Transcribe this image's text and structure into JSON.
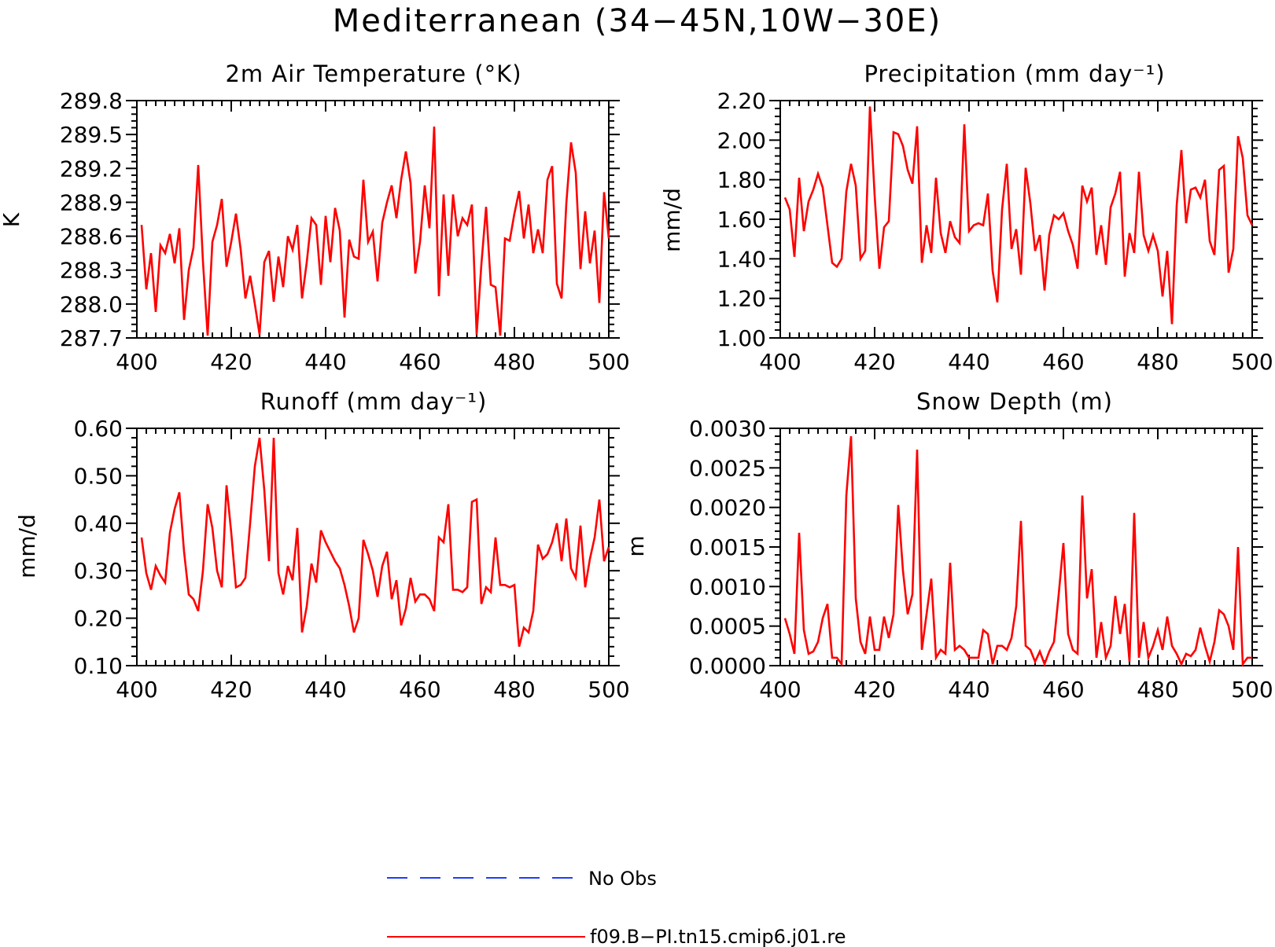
{
  "figure": {
    "title": "Mediterranean (34−45N,10W−30E)"
  },
  "legend": [
    {
      "label": "No Obs",
      "color": "#1f3cff",
      "dash": "dashed"
    },
    {
      "label": "f09.B−PI.tn15.cmip6.j01.re",
      "color": "#ff0000",
      "dash": "solid"
    }
  ],
  "chart_data": [
    {
      "type": "line",
      "title": "2m Air Temperature (°K)",
      "ylabel": "K",
      "xlim": [
        400,
        500
      ],
      "ylim": [
        287.7,
        289.8
      ],
      "x_ticks": [
        400,
        420,
        440,
        460,
        480,
        500
      ],
      "x_tick_labels": [
        "400",
        "420",
        "440",
        "460",
        "480",
        "500"
      ],
      "y_ticks": [
        287.7,
        288.0,
        288.3,
        288.6,
        288.9,
        289.2,
        289.5,
        289.8
      ],
      "y_tick_labels": [
        "287.7",
        "288.0",
        "288.3",
        "288.6",
        "288.9",
        "289.2",
        "289.5",
        "289.8"
      ],
      "x_start": 401,
      "series": [
        {
          "color": "#ff0000",
          "values": [
            288.7,
            288.13,
            288.45,
            287.93,
            288.52,
            288.45,
            288.62,
            288.36,
            288.67,
            287.86,
            288.3,
            288.5,
            289.23,
            288.38,
            287.72,
            288.55,
            288.7,
            288.93,
            288.33,
            288.55,
            288.8,
            288.48,
            288.05,
            288.25,
            288.0,
            287.73,
            288.37,
            288.47,
            288.02,
            288.42,
            288.15,
            288.6,
            288.48,
            288.7,
            288.05,
            288.37,
            288.76,
            288.7,
            288.17,
            288.78,
            288.37,
            288.85,
            288.65,
            287.88,
            288.57,
            288.42,
            288.4,
            289.1,
            288.55,
            288.64,
            288.2,
            288.72,
            288.9,
            289.05,
            288.76,
            289.1,
            289.35,
            289.07,
            288.27,
            288.55,
            289.05,
            288.67,
            289.57,
            288.07,
            288.97,
            288.25,
            288.97,
            288.6,
            288.76,
            288.7,
            288.88,
            287.73,
            288.35,
            288.86,
            288.17,
            288.15,
            287.72,
            288.58,
            288.56,
            288.8,
            289.0,
            288.58,
            288.88,
            288.45,
            288.66,
            288.45,
            289.1,
            289.22,
            288.18,
            288.05,
            288.89,
            289.43,
            289.16,
            288.31,
            288.82,
            288.36,
            288.65,
            288.01,
            288.99,
            288.58
          ]
        }
      ]
    },
    {
      "type": "line",
      "title": "Precipitation (mm day⁻¹)",
      "ylabel": "mm/d",
      "xlim": [
        400,
        500
      ],
      "ylim": [
        1.0,
        2.2
      ],
      "x_ticks": [
        400,
        420,
        440,
        460,
        480,
        500
      ],
      "x_tick_labels": [
        "400",
        "420",
        "440",
        "460",
        "480",
        "500"
      ],
      "y_ticks": [
        1.0,
        1.2,
        1.4,
        1.6,
        1.8,
        2.0,
        2.2
      ],
      "y_tick_labels": [
        "1.00",
        "1.20",
        "1.40",
        "1.60",
        "1.80",
        "2.00",
        "2.20"
      ],
      "x_start": 401,
      "series": [
        {
          "color": "#ff0000",
          "values": [
            1.71,
            1.65,
            1.41,
            1.81,
            1.54,
            1.69,
            1.75,
            1.83,
            1.76,
            1.57,
            1.38,
            1.36,
            1.4,
            1.74,
            1.88,
            1.77,
            1.4,
            1.44,
            2.17,
            1.72,
            1.35,
            1.56,
            1.59,
            2.04,
            2.03,
            1.97,
            1.85,
            1.78,
            2.07,
            1.38,
            1.57,
            1.43,
            1.81,
            1.53,
            1.43,
            1.59,
            1.51,
            1.48,
            2.08,
            1.54,
            1.57,
            1.58,
            1.57,
            1.73,
            1.34,
            1.18,
            1.65,
            1.88,
            1.45,
            1.55,
            1.32,
            1.86,
            1.68,
            1.44,
            1.52,
            1.24,
            1.52,
            1.62,
            1.6,
            1.63,
            1.54,
            1.47,
            1.35,
            1.77,
            1.69,
            1.76,
            1.42,
            1.57,
            1.37,
            1.66,
            1.73,
            1.84,
            1.31,
            1.53,
            1.43,
            1.84,
            1.52,
            1.44,
            1.52,
            1.44,
            1.21,
            1.44,
            1.07,
            1.67,
            1.95,
            1.58,
            1.75,
            1.76,
            1.71,
            1.8,
            1.49,
            1.42,
            1.85,
            1.87,
            1.33,
            1.45,
            2.02,
            1.91,
            1.62,
            1.57
          ]
        }
      ]
    },
    {
      "type": "line",
      "title": "Runoff (mm day⁻¹)",
      "ylabel": "mm/d",
      "xlim": [
        400,
        500
      ],
      "ylim": [
        0.1,
        0.6
      ],
      "x_ticks": [
        400,
        420,
        440,
        460,
        480,
        500
      ],
      "x_tick_labels": [
        "400",
        "420",
        "440",
        "460",
        "480",
        "500"
      ],
      "y_ticks": [
        0.1,
        0.2,
        0.3,
        0.4,
        0.5,
        0.6
      ],
      "y_tick_labels": [
        "0.10",
        "0.20",
        "0.30",
        "0.40",
        "0.50",
        "0.60"
      ],
      "x_start": 401,
      "series": [
        {
          "color": "#ff0000",
          "values": [
            0.37,
            0.295,
            0.26,
            0.31,
            0.29,
            0.275,
            0.38,
            0.43,
            0.465,
            0.34,
            0.25,
            0.24,
            0.215,
            0.3,
            0.44,
            0.39,
            0.3,
            0.265,
            0.48,
            0.38,
            0.265,
            0.27,
            0.285,
            0.4,
            0.52,
            0.58,
            0.47,
            0.32,
            0.58,
            0.295,
            0.25,
            0.31,
            0.28,
            0.39,
            0.17,
            0.225,
            0.315,
            0.275,
            0.385,
            0.36,
            0.34,
            0.32,
            0.305,
            0.27,
            0.225,
            0.17,
            0.2,
            0.365,
            0.335,
            0.3,
            0.245,
            0.31,
            0.34,
            0.24,
            0.28,
            0.185,
            0.22,
            0.285,
            0.235,
            0.25,
            0.25,
            0.24,
            0.215,
            0.37,
            0.36,
            0.44,
            0.26,
            0.26,
            0.255,
            0.265,
            0.445,
            0.45,
            0.23,
            0.265,
            0.255,
            0.37,
            0.27,
            0.27,
            0.265,
            0.27,
            0.14,
            0.18,
            0.17,
            0.215,
            0.355,
            0.325,
            0.335,
            0.36,
            0.4,
            0.32,
            0.41,
            0.305,
            0.285,
            0.395,
            0.265,
            0.325,
            0.37,
            0.45,
            0.32,
            0.35
          ]
        }
      ]
    },
    {
      "type": "line",
      "title": "Snow Depth (m)",
      "ylabel": "m",
      "xlim": [
        400,
        500
      ],
      "ylim": [
        0.0,
        0.003
      ],
      "x_ticks": [
        400,
        420,
        440,
        460,
        480,
        500
      ],
      "x_tick_labels": [
        "400",
        "420",
        "440",
        "460",
        "480",
        "500"
      ],
      "y_ticks": [
        0.0,
        0.0005,
        0.001,
        0.0015,
        0.002,
        0.0025,
        0.003
      ],
      "y_tick_labels": [
        "0.0000",
        "0.0005",
        "0.0010",
        "0.0015",
        "0.0020",
        "0.0025",
        "0.0030"
      ],
      "x_start": 401,
      "series": [
        {
          "color": "#ff0000",
          "values": [
            0.0006,
            0.0004,
            0.00015,
            0.00168,
            0.00045,
            0.00015,
            0.00018,
            0.0003,
            0.0006,
            0.00078,
            0.0001,
            0.0001,
            2e-05,
            0.00215,
            0.0029,
            0.00085,
            0.0003,
            0.00015,
            0.00062,
            0.0002,
            0.0002,
            0.00062,
            0.00035,
            0.00065,
            0.00203,
            0.0012,
            0.00065,
            0.0009,
            0.00273,
            0.0002,
            0.00065,
            0.0011,
            0.0001,
            0.0002,
            0.00015,
            0.0013,
            0.0002,
            0.00025,
            0.0002,
            0.0001,
            0.0001,
            0.0001,
            0.00045,
            0.0004,
            2e-05,
            0.00025,
            0.00025,
            0.0002,
            0.00035,
            0.00075,
            0.00183,
            0.00025,
            0.0002,
            5e-05,
            0.00018,
            2e-05,
            0.00018,
            0.0003,
            0.0009,
            0.00155,
            0.0004,
            0.0002,
            0.00015,
            0.00215,
            0.00085,
            0.00122,
            0.0001,
            0.00055,
            0.0001,
            0.00025,
            0.00088,
            0.0004,
            0.00078,
            5e-05,
            0.00193,
            0.0001,
            0.00055,
            0.0001,
            0.00025,
            0.00045,
            0.0002,
            0.00062,
            0.00025,
            0.00015,
            2e-05,
            0.00015,
            0.00012,
            0.0002,
            0.00048,
            0.00025,
            5e-05,
            0.0003,
            0.0007,
            0.00065,
            0.0005,
            0.0002,
            0.0015,
            2e-05,
            0.0001,
            0.0001
          ]
        }
      ]
    }
  ]
}
